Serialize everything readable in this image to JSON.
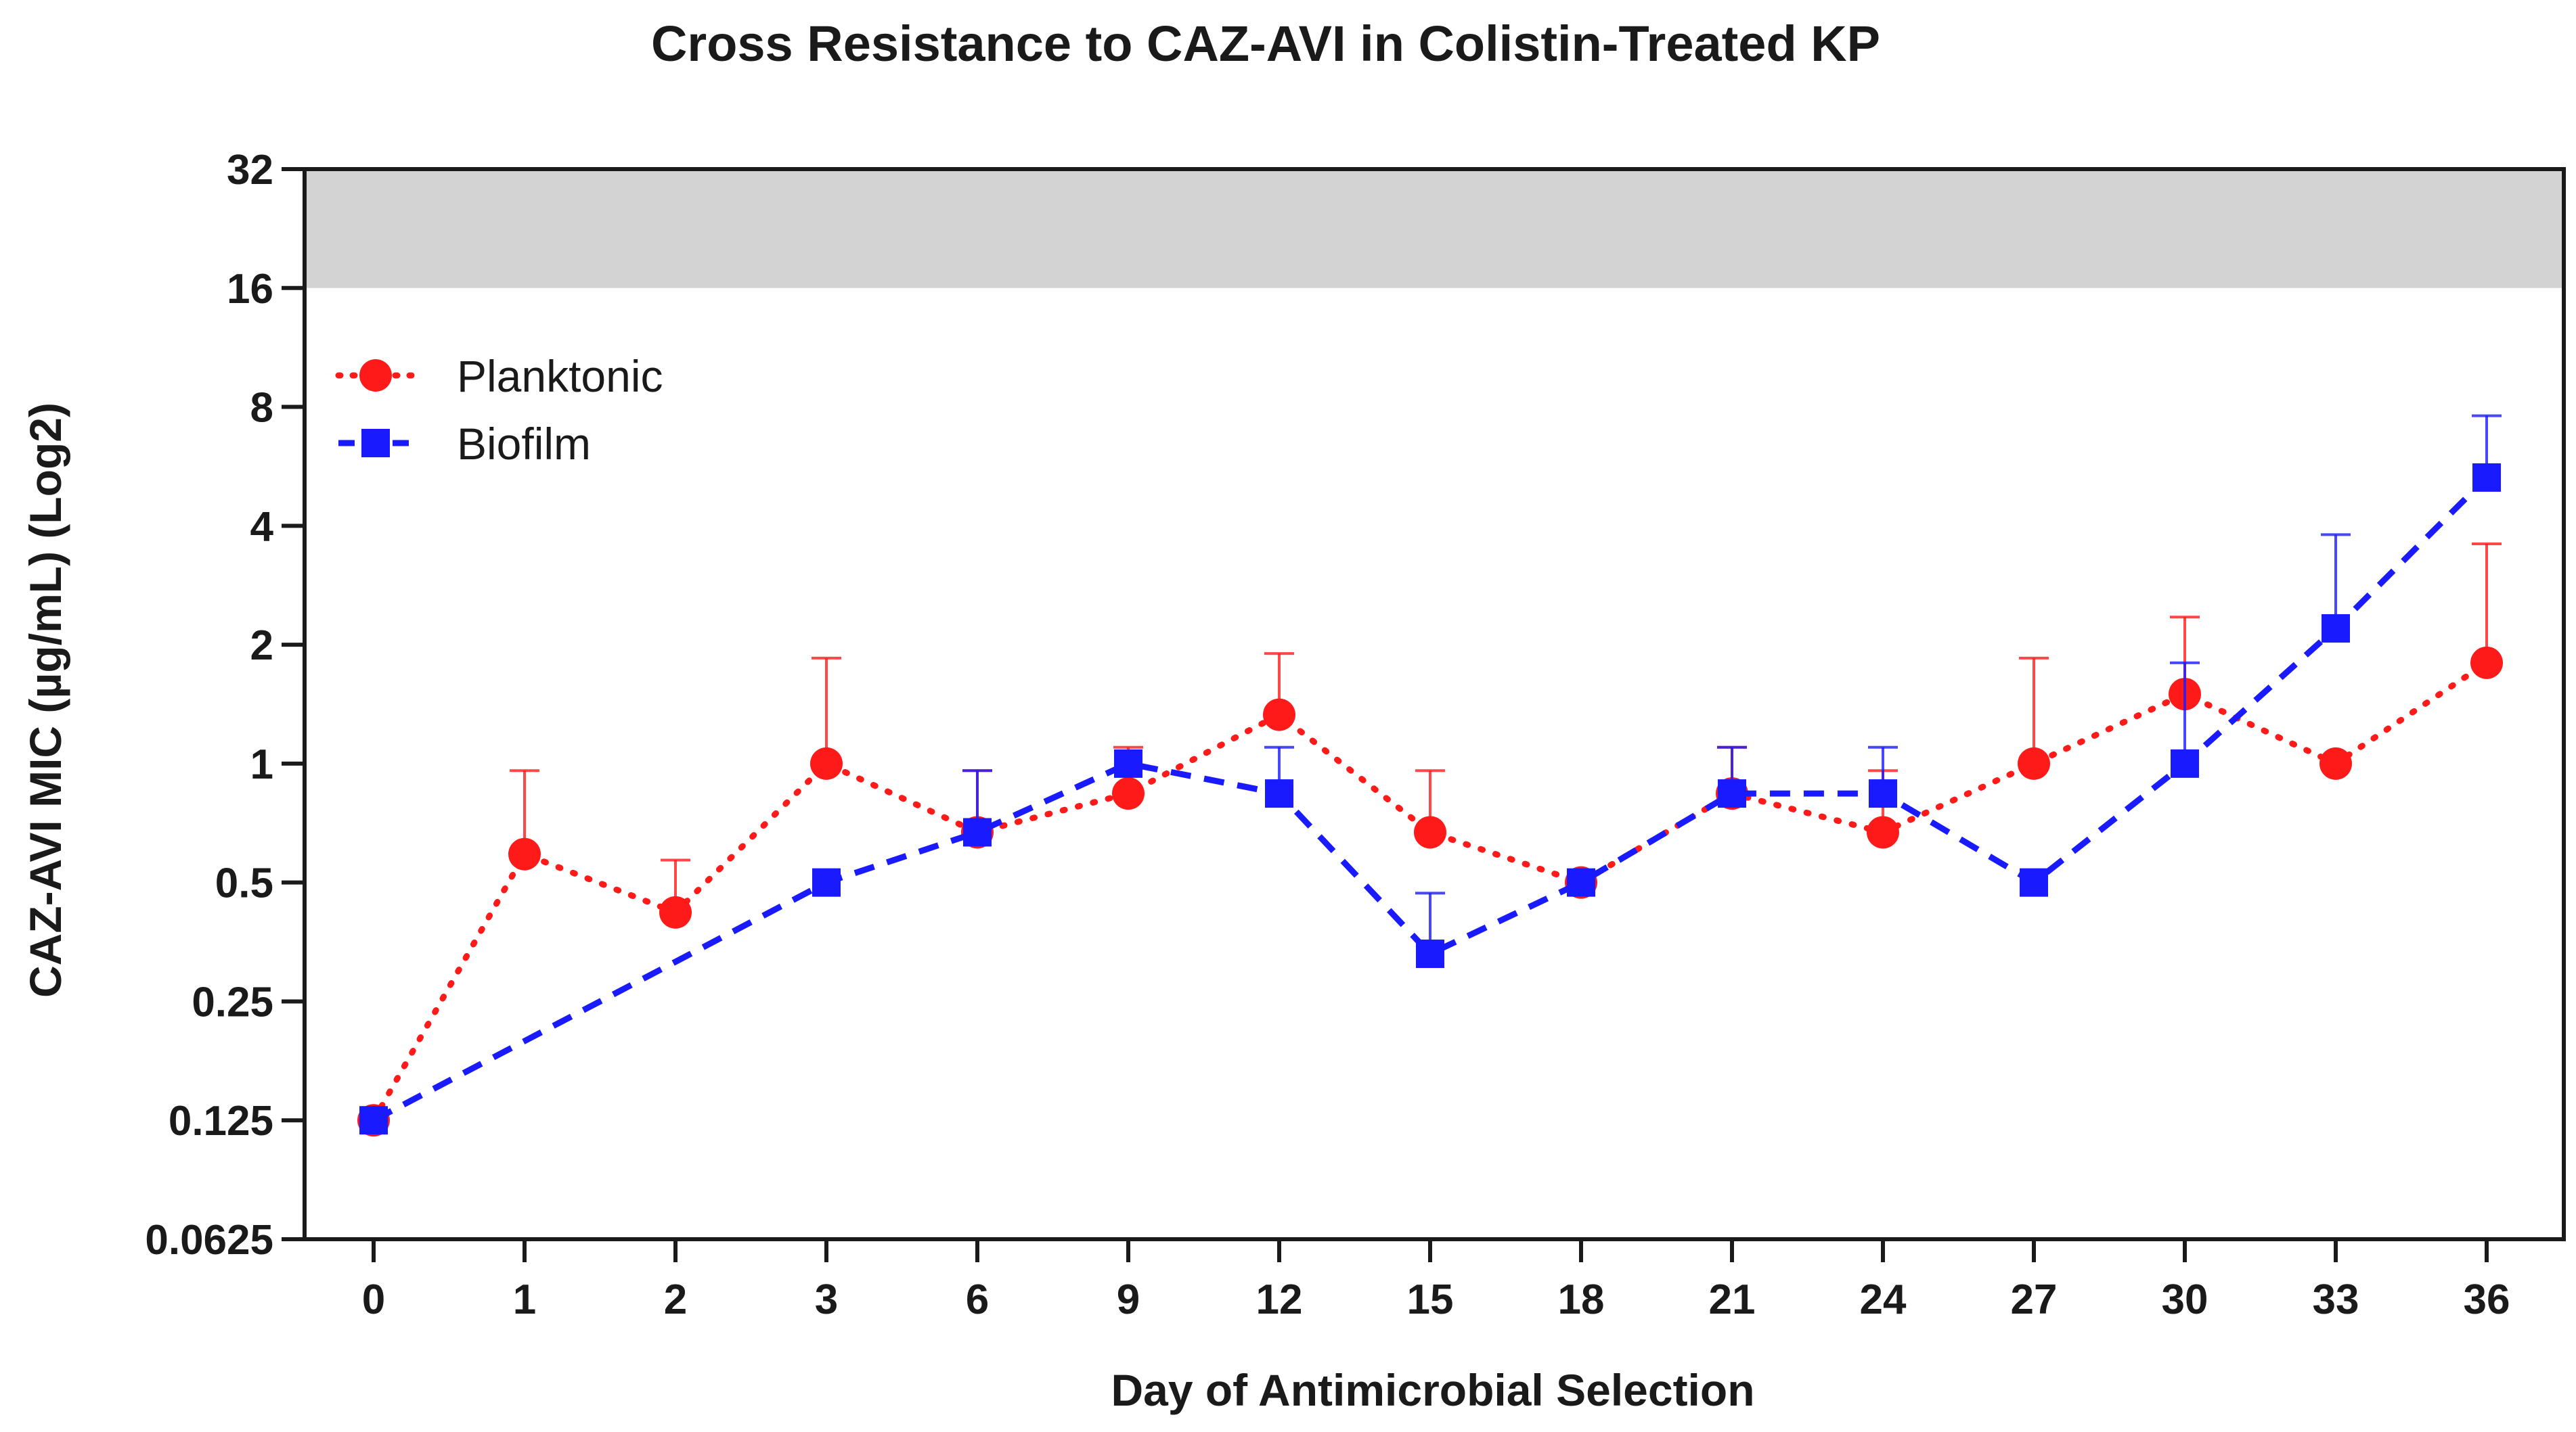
{
  "chart_data": {
    "type": "line",
    "title": "Cross Resistance to CAZ-AVI in Colistin-Treated KP",
    "xlabel": "Day of Antimicrobial Selection",
    "ylabel": "CAZ-AVI MIC (µg/mL) (Log2)",
    "y_scale": "log2",
    "ylim": [
      0.0625,
      32
    ],
    "y_ticks": [
      "0.0625",
      "0.125",
      "0.25",
      "0.5",
      "1",
      "2",
      "4",
      "8",
      "16",
      "32"
    ],
    "categories": [
      "0",
      "1",
      "2",
      "3",
      "6",
      "9",
      "12",
      "15",
      "18",
      "21",
      "24",
      "27",
      "30",
      "33",
      "36"
    ],
    "shaded_region": {
      "from": 16,
      "to": 32,
      "color": "#d3d3d3"
    },
    "grid": false,
    "legend_position": "top-left",
    "series": [
      {
        "name": "Planktonic",
        "color": "#ff1a1a",
        "marker": "circle",
        "line_style": "dotted",
        "values": [
          0.125,
          0.59,
          0.42,
          1.0,
          0.67,
          0.84,
          1.33,
          0.67,
          0.5,
          0.84,
          0.67,
          1.0,
          1.5,
          1.0,
          1.8
        ],
        "error_upper": [
          null,
          0.96,
          0.57,
          1.85,
          0.96,
          1.1,
          1.9,
          0.96,
          null,
          1.1,
          0.96,
          1.85,
          2.35,
          null,
          3.6
        ]
      },
      {
        "name": "Biofilm",
        "color": "#1a1aff",
        "marker": "square",
        "line_style": "dashed",
        "values": [
          0.125,
          null,
          null,
          0.5,
          0.67,
          1.0,
          0.84,
          0.33,
          0.5,
          0.84,
          0.84,
          0.5,
          1.0,
          2.2,
          5.3
        ],
        "error_upper": [
          null,
          null,
          null,
          null,
          0.96,
          null,
          1.1,
          0.47,
          null,
          1.1,
          1.1,
          null,
          1.8,
          3.8,
          7.6
        ]
      }
    ]
  }
}
